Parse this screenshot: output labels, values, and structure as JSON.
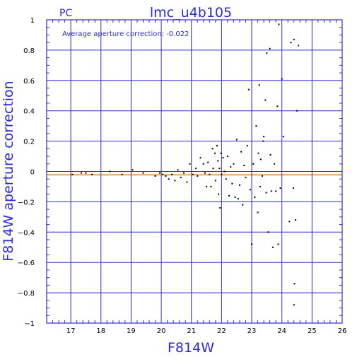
{
  "chart_data": {
    "type": "scatter",
    "panel_label": "PC",
    "title": "lmc_u4b105",
    "annotation": "Average aperture correction: -0.022",
    "xlabel": "F814W",
    "ylabel": "F814W aperture correction",
    "xlim": [
      16.2,
      26
    ],
    "ylim": [
      -1,
      1
    ],
    "x_ticks": [
      17,
      18,
      19,
      20,
      21,
      22,
      23,
      24,
      25,
      26
    ],
    "y_ticks": [
      -1,
      -0.8,
      -0.6,
      -0.4,
      -0.2,
      0,
      0.2,
      0.4,
      0.6,
      0.8,
      1
    ],
    "y_tick_labels": [
      "−1",
      "−0.8",
      "−0.6",
      "−0.4",
      "−0.2",
      "0",
      "0.2",
      "0.4",
      "0.6",
      "0.8",
      "1"
    ],
    "grid": true,
    "reference_lines": {
      "zero": 0,
      "average": -0.022
    },
    "colors": {
      "frame": "#2b2bd6",
      "grid": "#2b2bd6",
      "average_line": "#d42020",
      "zero_line": "#2b2bd6",
      "points": "#000000",
      "text": "#2b2bd6"
    },
    "points": [
      [
        17.05,
        -0.02
      ],
      [
        17.35,
        -0.01
      ],
      [
        17.5,
        -0.01
      ],
      [
        17.7,
        -0.02
      ],
      [
        18.3,
        0.0
      ],
      [
        18.7,
        -0.02
      ],
      [
        19.05,
        0.01
      ],
      [
        19.4,
        -0.01
      ],
      [
        19.8,
        -0.03
      ],
      [
        19.95,
        -0.01
      ],
      [
        20.05,
        -0.02
      ],
      [
        20.15,
        -0.03
      ],
      [
        20.25,
        -0.05
      ],
      [
        20.35,
        -0.02
      ],
      [
        20.45,
        -0.06
      ],
      [
        20.55,
        0.01
      ],
      [
        20.65,
        -0.04
      ],
      [
        20.75,
        -0.01
      ],
      [
        20.85,
        -0.07
      ],
      [
        20.95,
        0.05
      ],
      [
        21.05,
        -0.02
      ],
      [
        21.15,
        0.02
      ],
      [
        21.2,
        -0.03
      ],
      [
        21.3,
        0.09
      ],
      [
        21.4,
        0.05
      ],
      [
        21.45,
        -0.01
      ],
      [
        21.5,
        -0.1
      ],
      [
        21.55,
        0.06
      ],
      [
        21.6,
        -0.02
      ],
      [
        21.65,
        -0.1
      ],
      [
        21.7,
        0.15
      ],
      [
        21.72,
        0.02
      ],
      [
        21.78,
        0.12
      ],
      [
        21.8,
        -0.06
      ],
      [
        21.85,
        0.17
      ],
      [
        21.88,
        0.07
      ],
      [
        21.9,
        -0.15
      ],
      [
        21.93,
        0.02
      ],
      [
        21.95,
        -0.24
      ],
      [
        21.98,
        0.12
      ],
      [
        22.0,
        -0.02
      ],
      [
        22.05,
        0.09
      ],
      [
        22.1,
        0.0
      ],
      [
        22.15,
        -0.05
      ],
      [
        22.2,
        0.1
      ],
      [
        22.25,
        -0.16
      ],
      [
        22.3,
        0.03
      ],
      [
        22.35,
        -0.08
      ],
      [
        22.4,
        0.05
      ],
      [
        22.45,
        -0.17
      ],
      [
        22.5,
        0.21
      ],
      [
        22.55,
        -0.18
      ],
      [
        22.6,
        -0.09
      ],
      [
        22.65,
        0.13
      ],
      [
        22.7,
        -0.22
      ],
      [
        22.75,
        0.04
      ],
      [
        22.8,
        -0.04
      ],
      [
        22.85,
        0.17
      ],
      [
        22.9,
        0.54
      ],
      [
        22.95,
        -0.12
      ],
      [
        23.0,
        -0.48
      ],
      [
        23.05,
        0.05
      ],
      [
        23.1,
        -0.17
      ],
      [
        23.15,
        0.3
      ],
      [
        23.2,
        -0.27
      ],
      [
        23.22,
        0.12
      ],
      [
        23.25,
        0.57
      ],
      [
        23.28,
        -0.1
      ],
      [
        23.3,
        0.08
      ],
      [
        23.35,
        -0.03
      ],
      [
        23.38,
        0.2
      ],
      [
        23.4,
        0.23
      ],
      [
        23.45,
        0.47
      ],
      [
        23.48,
        -0.14
      ],
      [
        23.5,
        0.78
      ],
      [
        23.55,
        -0.4
      ],
      [
        23.6,
        0.81
      ],
      [
        23.62,
        0.11
      ],
      [
        23.65,
        -0.13
      ],
      [
        23.7,
        -0.5
      ],
      [
        23.75,
        0.05
      ],
      [
        23.8,
        -0.13
      ],
      [
        23.85,
        0.43
      ],
      [
        23.88,
        -0.48
      ],
      [
        23.9,
        0.97
      ],
      [
        23.95,
        -0.11
      ],
      [
        24.0,
        0.61
      ],
      [
        24.05,
        0.23
      ],
      [
        24.25,
        -0.33
      ],
      [
        24.3,
        0.85
      ],
      [
        24.38,
        -0.11
      ],
      [
        24.4,
        0.87
      ],
      [
        24.42,
        -0.74
      ],
      [
        24.45,
        -0.32
      ],
      [
        24.5,
        0.4
      ],
      [
        24.55,
        0.83
      ],
      [
        24.4,
        -0.88
      ]
    ]
  }
}
